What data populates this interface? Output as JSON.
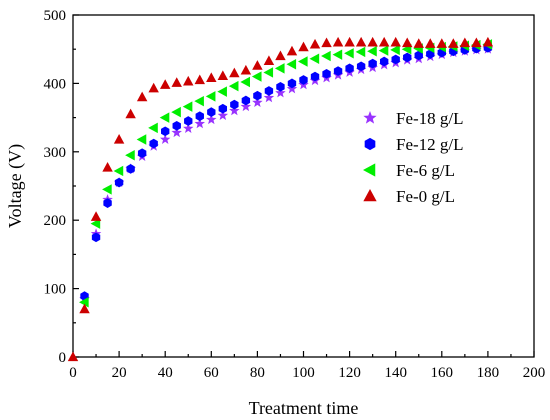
{
  "chart_data": {
    "type": "scatter",
    "title": "",
    "xlabel": "Treatment time",
    "ylabel": "Voltage (V)",
    "xlim": [
      0,
      200
    ],
    "ylim": [
      0,
      500
    ],
    "x_ticks": [
      0,
      20,
      40,
      60,
      80,
      100,
      120,
      140,
      160,
      180,
      200
    ],
    "x_minor_ticks": [
      10,
      30,
      50,
      70,
      90,
      110,
      130,
      150,
      170,
      190
    ],
    "y_ticks": [
      0,
      100,
      200,
      300,
      400,
      500
    ],
    "y_minor_ticks": [
      50,
      150,
      250,
      350,
      450
    ],
    "grid": false,
    "legend_position": "right-center",
    "series": [
      {
        "name": "Fe-18 g/L",
        "marker": "star",
        "color": "#9933ff",
        "x": [
          5,
          10,
          15,
          20,
          25,
          30,
          35,
          40,
          45,
          50,
          55,
          60,
          65,
          70,
          75,
          80,
          85,
          90,
          95,
          100,
          105,
          110,
          115,
          120,
          125,
          130,
          135,
          140,
          145,
          150,
          155,
          160,
          165,
          170,
          175,
          180
        ],
        "y": [
          85,
          180,
          230,
          255,
          275,
          293,
          308,
          318,
          328,
          334,
          341,
          347,
          353,
          360,
          366,
          372,
          379,
          386,
          392,
          398,
          404,
          408,
          412,
          416,
          420,
          423,
          427,
          430,
          434,
          436,
          439,
          442,
          445,
          447,
          449,
          450
        ]
      },
      {
        "name": "Fe-12 g/L",
        "marker": "hexagon",
        "color": "#0000ff",
        "x": [
          5,
          10,
          15,
          20,
          25,
          30,
          35,
          40,
          45,
          50,
          55,
          60,
          65,
          70,
          75,
          80,
          85,
          90,
          95,
          100,
          105,
          110,
          115,
          120,
          125,
          130,
          135,
          140,
          145,
          150,
          155,
          160,
          165,
          170,
          175,
          180
        ],
        "y": [
          89,
          175,
          225,
          255,
          275,
          298,
          312,
          330,
          338,
          345,
          352,
          358,
          363,
          369,
          375,
          382,
          389,
          395,
          400,
          405,
          410,
          414,
          418,
          422,
          425,
          429,
          432,
          435,
          438,
          441,
          443,
          445,
          447,
          449,
          451,
          452
        ]
      },
      {
        "name": "Fe-6 g/L",
        "marker": "triangle-left",
        "color": "#00ee00",
        "x": [
          5,
          10,
          15,
          20,
          25,
          30,
          35,
          40,
          45,
          50,
          55,
          60,
          65,
          70,
          75,
          80,
          85,
          90,
          95,
          100,
          105,
          110,
          115,
          120,
          125,
          130,
          135,
          140,
          145,
          150,
          155,
          160,
          165,
          170,
          175,
          180
        ],
        "y": [
          80,
          195,
          245,
          272,
          295,
          318,
          335,
          350,
          358,
          366,
          374,
          381,
          388,
          396,
          402,
          410,
          416,
          422,
          428,
          432,
          436,
          440,
          442,
          444,
          446,
          447,
          448,
          449,
          450,
          451,
          452,
          453,
          454,
          455,
          456,
          457
        ]
      },
      {
        "name": "Fe-0 g/L",
        "marker": "triangle-up",
        "color": "#cc0000",
        "x": [
          0,
          5,
          10,
          15,
          20,
          25,
          30,
          35,
          40,
          45,
          50,
          55,
          60,
          65,
          70,
          75,
          80,
          85,
          90,
          95,
          100,
          105,
          110,
          115,
          120,
          125,
          130,
          135,
          140,
          145,
          150,
          155,
          160,
          165,
          170,
          175,
          180
        ],
        "y": [
          0,
          70,
          205,
          277,
          318,
          355,
          380,
          393,
          398,
          401,
          403,
          405,
          408,
          411,
          415,
          419,
          426,
          433,
          440,
          447,
          453,
          457,
          459,
          460,
          460,
          460,
          460,
          460,
          460,
          459,
          458,
          458,
          458,
          458,
          459,
          459,
          460
        ]
      }
    ]
  }
}
